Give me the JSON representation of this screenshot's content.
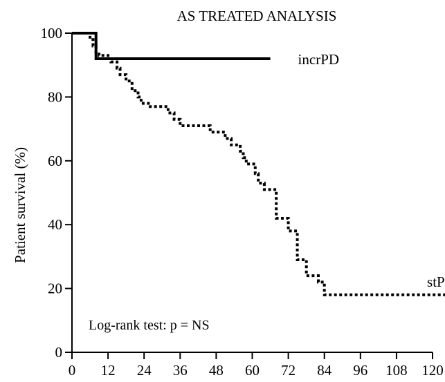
{
  "chart_data": {
    "type": "line",
    "subtype": "kaplan-meier step",
    "title": "AS TREATED ANALYSIS",
    "xlabel": "",
    "ylabel": "Patient survival (%)",
    "xlim": [
      0,
      120
    ],
    "ylim": [
      0,
      100
    ],
    "x_ticks": [
      "0",
      "12",
      "24",
      "36",
      "48",
      "60",
      "72",
      "84",
      "96",
      "108",
      "120"
    ],
    "y_ticks": [
      "0",
      "20",
      "40",
      "60",
      "80",
      "100"
    ],
    "grid": false,
    "annotation": "Log-rank test: p = NS",
    "series": [
      {
        "name": "incrPD",
        "style": "solid",
        "color": "#000000",
        "points": [
          [
            0,
            100
          ],
          [
            8,
            100
          ],
          [
            8,
            92
          ],
          [
            66,
            92
          ]
        ]
      },
      {
        "name": "stPD",
        "style": "dotted",
        "color": "#000000",
        "points": [
          [
            0,
            100
          ],
          [
            6,
            100
          ],
          [
            6,
            98
          ],
          [
            7,
            98
          ],
          [
            7,
            96
          ],
          [
            8,
            96
          ],
          [
            8,
            94
          ],
          [
            9,
            94
          ],
          [
            9,
            93
          ],
          [
            12,
            93
          ],
          [
            12,
            92
          ],
          [
            13,
            92
          ],
          [
            13,
            91
          ],
          [
            15,
            91
          ],
          [
            15,
            89
          ],
          [
            16,
            89
          ],
          [
            16,
            87
          ],
          [
            18,
            87
          ],
          [
            18,
            85
          ],
          [
            20,
            85
          ],
          [
            20,
            82
          ],
          [
            22,
            82
          ],
          [
            22,
            80
          ],
          [
            23,
            80
          ],
          [
            23,
            78
          ],
          [
            26,
            78
          ],
          [
            26,
            77
          ],
          [
            32,
            77
          ],
          [
            32,
            75
          ],
          [
            34,
            75
          ],
          [
            34,
            73
          ],
          [
            36,
            73
          ],
          [
            36,
            71
          ],
          [
            46,
            71
          ],
          [
            46,
            69
          ],
          [
            51,
            69
          ],
          [
            51,
            67
          ],
          [
            53,
            67
          ],
          [
            53,
            65
          ],
          [
            56,
            65
          ],
          [
            56,
            63
          ],
          [
            57,
            63
          ],
          [
            57,
            61
          ],
          [
            58,
            61
          ],
          [
            58,
            59
          ],
          [
            61,
            59
          ],
          [
            61,
            56
          ],
          [
            62,
            56
          ],
          [
            62,
            53
          ],
          [
            64,
            53
          ],
          [
            64,
            51
          ],
          [
            68,
            51
          ],
          [
            68,
            42
          ],
          [
            72,
            42
          ],
          [
            72,
            38
          ],
          [
            75,
            38
          ],
          [
            75,
            29
          ],
          [
            78,
            29
          ],
          [
            78,
            24
          ],
          [
            82,
            24
          ],
          [
            82,
            22
          ],
          [
            84,
            22
          ],
          [
            84,
            18
          ],
          [
            126,
            18
          ]
        ]
      }
    ]
  }
}
